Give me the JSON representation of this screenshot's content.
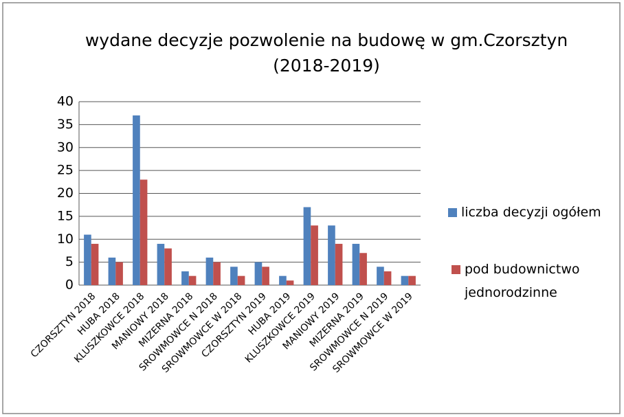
{
  "chart_data": {
    "type": "bar",
    "title": [
      "wydane decyzje pozwolenie na budowę  w gm.Czorsztyn",
      "(2018-2019)"
    ],
    "categories": [
      "CZORSZTYN 2018",
      "HUBA 2018",
      "KLUSZKOWCE 2018",
      "MANIOWY 2018",
      "MIZERNA 2018",
      "SROWMOWCE N 2018",
      "SROWMOWCE W 2018",
      "CZORSZTYN 2019",
      "HUBA 2019",
      "KLUSZKOWCE 2019",
      "MANIOWY 2019",
      "MIZERNA 2019",
      "SROWMOWCE N 2019",
      "SROWMOWCE W 2019"
    ],
    "series": [
      {
        "name": "liczba decyzji  ogółem",
        "color": "#4f81bd",
        "values": [
          11,
          6,
          37,
          9,
          3,
          6,
          4,
          5,
          2,
          17,
          13,
          9,
          4,
          2
        ]
      },
      {
        "name": "pod budownictwo jednorodzinne",
        "color": "#c0504d",
        "values": [
          9,
          5,
          23,
          8,
          2,
          5,
          2,
          4,
          1,
          13,
          9,
          7,
          3,
          2
        ]
      }
    ],
    "ylim": [
      0,
      40
    ],
    "yticks": [
      0,
      5,
      10,
      15,
      20,
      25,
      30,
      35,
      40
    ],
    "grid": true,
    "legend": "right"
  }
}
